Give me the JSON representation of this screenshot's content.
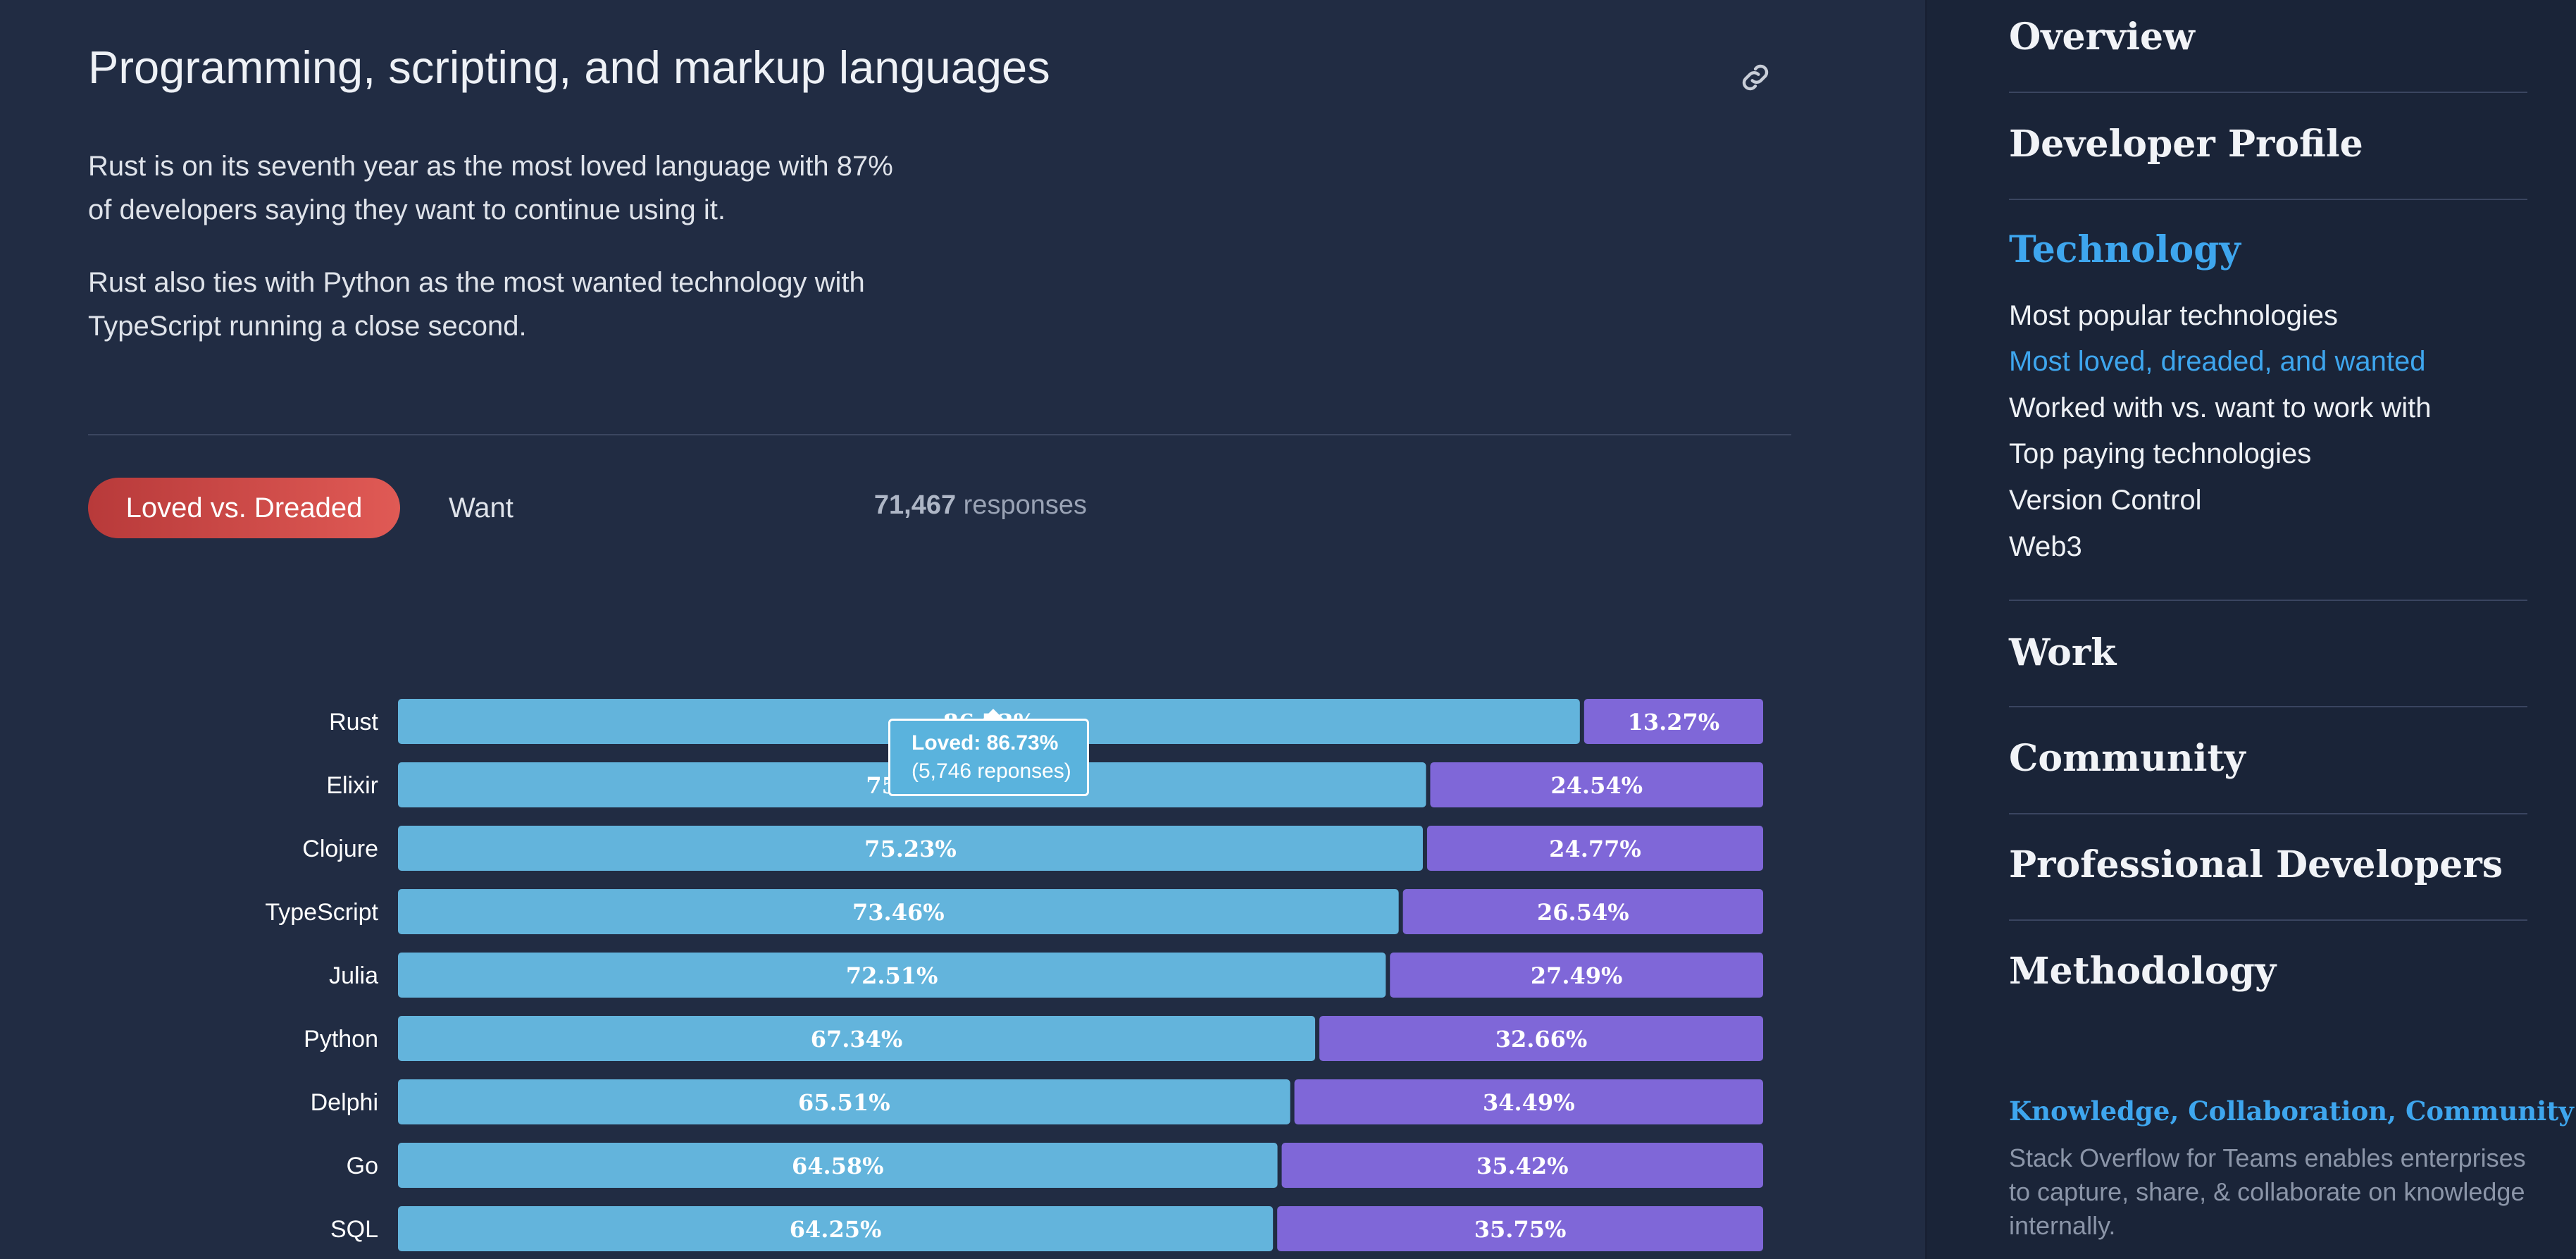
{
  "section": {
    "title": "Programming, scripting, and markup languages",
    "paragraphs": [
      "Rust is on its seventh year as the most loved language with 87% of developers saying they want to continue using it.",
      "Rust also ties with Python as the most wanted technology with TypeScript running a close second."
    ],
    "link_icon": "link-icon"
  },
  "tabs": {
    "active_label": "Loved vs. Dreaded",
    "want_label": "Want"
  },
  "responses": {
    "count": "71,467",
    "label": "responses"
  },
  "colors": {
    "loved": "#63b4dc",
    "dreaded": "#7f67d8",
    "accent": "#3ea6ee",
    "active_tab": "#d24a48"
  },
  "chart_data": {
    "type": "bar",
    "stacked": true,
    "orientation": "horizontal",
    "categories": [
      "Rust",
      "Elixir",
      "Clojure",
      "TypeScript",
      "Julia",
      "Python",
      "Delphi",
      "Go",
      "SQL"
    ],
    "series": [
      {
        "name": "Loved",
        "values": [
          86.73,
          75.46,
          75.23,
          73.46,
          72.51,
          67.34,
          65.51,
          64.58,
          64.25
        ]
      },
      {
        "name": "Dreaded",
        "values": [
          13.27,
          24.54,
          24.77,
          26.54,
          27.49,
          32.66,
          34.49,
          35.42,
          35.75
        ]
      }
    ],
    "value_labels": {
      "Loved": [
        "86.73%",
        "75.46%",
        "75.23%",
        "73.46%",
        "72.51%",
        "67.34%",
        "65.51%",
        "64.58%",
        "64.25%"
      ],
      "Dreaded": [
        "13.27%",
        "24.54%",
        "24.77%",
        "26.54%",
        "27.49%",
        "32.66%",
        "34.49%",
        "35.42%",
        "35.75%"
      ]
    },
    "xlim": [
      0,
      100
    ],
    "grid": false
  },
  "tooltip": {
    "line1": "Loved: 86.73%",
    "line2": "(5,746 reponses)"
  },
  "sidebar": {
    "sections": [
      {
        "label": "Overview"
      },
      {
        "label": "Developer Profile"
      },
      {
        "label": "Technology",
        "active": true
      },
      {
        "label": "Work"
      },
      {
        "label": "Community"
      },
      {
        "label": "Professional Developers"
      },
      {
        "label": "Methodology"
      }
    ],
    "technology_items": [
      "Most popular technologies",
      "Most loved, dreaded, and wanted",
      "Worked with vs. want to work with",
      "Top paying technologies",
      "Version Control",
      "Web3"
    ],
    "promo": {
      "title": "Knowledge, Collaboration, Community",
      "text": "Stack Overflow for Teams enables enterprises to capture, share, & collaborate on knowledge internally."
    }
  }
}
